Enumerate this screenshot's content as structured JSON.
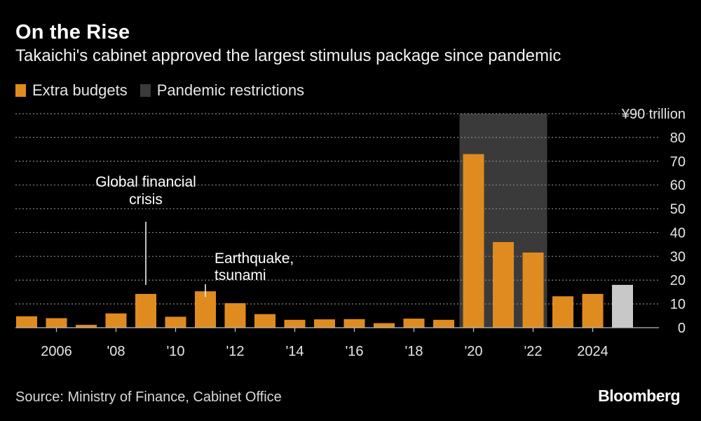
{
  "header": {
    "title": "On the Rise",
    "subtitle": "Takaichi's cabinet approved the largest stimulus package since pandemic"
  },
  "legend": {
    "extra_label": "Extra budgets",
    "pandemic_label": "Pandemic restrictions"
  },
  "footer": {
    "source": "Source: Ministry of Finance, Cabinet Office",
    "brand": "Bloomberg"
  },
  "colors": {
    "extra": "#e08b1f",
    "latest": "#c8c8c8",
    "pandemic": "#3a3a3a",
    "grid": "#888888",
    "background": "#000000"
  },
  "chart_data": {
    "type": "bar",
    "x": [
      2005,
      2006,
      2007,
      2008,
      2009,
      2010,
      2011,
      2012,
      2013,
      2014,
      2015,
      2016,
      2017,
      2018,
      2019,
      2020,
      2021,
      2022,
      2023,
      2024,
      2025
    ],
    "values": [
      4.8,
      4.0,
      1.2,
      6.0,
      14.2,
      4.6,
      15.3,
      10.3,
      5.7,
      3.3,
      3.5,
      3.6,
      1.9,
      3.8,
      3.3,
      73.0,
      36.0,
      31.6,
      13.2,
      14.2,
      18.0
    ],
    "highlight_last": true,
    "x_tick_labels": [
      {
        "year": 2006,
        "label": "2006"
      },
      {
        "year": 2008,
        "label": "'08"
      },
      {
        "year": 2010,
        "label": "'10"
      },
      {
        "year": 2012,
        "label": "'12"
      },
      {
        "year": 2014,
        "label": "'14"
      },
      {
        "year": 2016,
        "label": "'16"
      },
      {
        "year": 2018,
        "label": "'18"
      },
      {
        "year": 2020,
        "label": "'20"
      },
      {
        "year": 2022,
        "label": "'22"
      },
      {
        "year": 2024,
        "label": "2024"
      }
    ],
    "y_ticks": [
      0,
      10,
      20,
      30,
      40,
      50,
      60,
      70,
      80,
      90
    ],
    "y_top_label": "¥90 trillion",
    "ylim": [
      0,
      90
    ],
    "grid": true,
    "shaded_period": {
      "start": 2020,
      "end": 2022
    },
    "annotations": [
      {
        "year": 2009,
        "lines": [
          "Global financial",
          "crisis"
        ]
      },
      {
        "year": 2011,
        "lines": [
          "Earthquake,",
          "tsunami"
        ]
      }
    ]
  }
}
